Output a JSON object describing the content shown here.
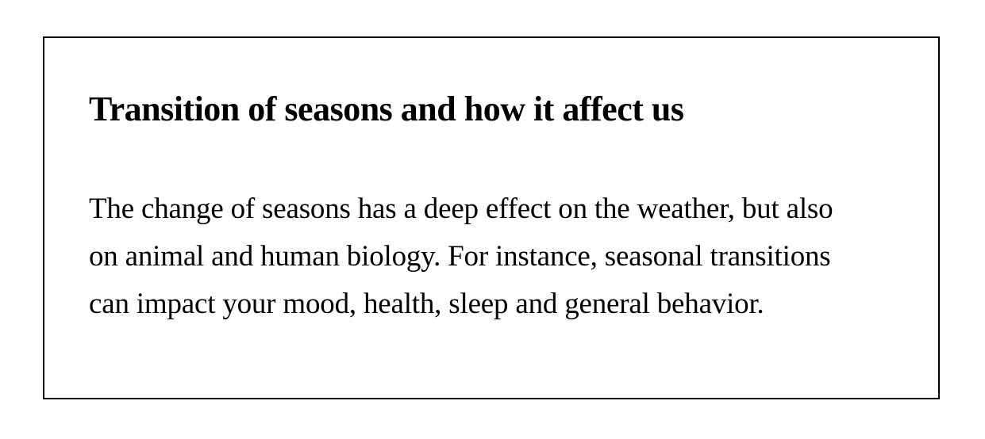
{
  "card": {
    "title": "Transition of seasons and how it affect us",
    "paragraph_lines": [
      "The change of seasons has a deep effect on the weather, but also",
      "on animal and human biology. For instance, seasonal transitions",
      "can impact your mood, health, sleep and general behavior."
    ]
  },
  "colors": {
    "background": "#ffffff",
    "text": "#000000",
    "border": "#000000"
  }
}
